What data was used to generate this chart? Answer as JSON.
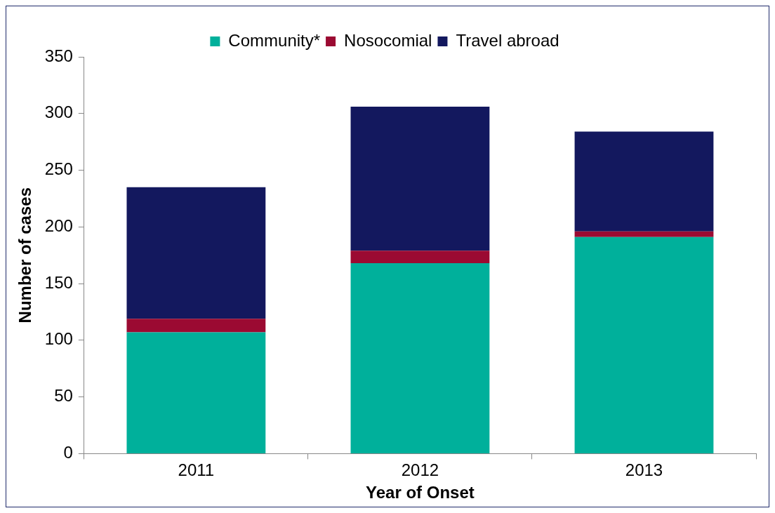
{
  "chart_data": {
    "type": "bar",
    "stacked": true,
    "xlabel": "Year of Onset",
    "ylabel": "Number of cases",
    "categories": [
      "2011",
      "2012",
      "2013"
    ],
    "series": [
      {
        "name": "Community*",
        "color": "#00b09b",
        "values": [
          107,
          168,
          191
        ]
      },
      {
        "name": "Nosocomial",
        "color": "#9b0a32",
        "values": [
          12,
          11,
          5
        ]
      },
      {
        "name": "Travel abroad",
        "color": "#13185e",
        "values": [
          116,
          127,
          88
        ]
      }
    ],
    "ylim": [
      0,
      350
    ],
    "yticks": [
      0,
      50,
      100,
      150,
      200,
      250,
      300,
      350
    ],
    "grid": false,
    "legend": "top"
  }
}
